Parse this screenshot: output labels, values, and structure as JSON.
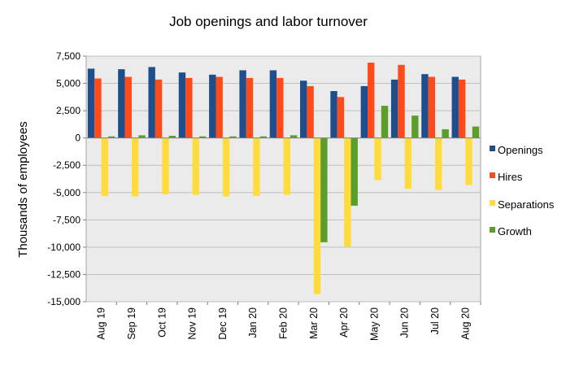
{
  "chart_data": {
    "type": "bar",
    "title": "Job openings and labor turnover",
    "xlabel": "",
    "ylabel": "Thousands  of employees",
    "ylim": [
      -15000,
      7500
    ],
    "yticks": [
      7500,
      5000,
      2500,
      0,
      -2500,
      -5000,
      -7500,
      -10000,
      -12500,
      -15000
    ],
    "ytick_labels": [
      "7,500",
      "5,000",
      "2,500",
      "0",
      "-2,500",
      "-5,000",
      "-7,500",
      "-10,000",
      "-12,500",
      "-15,000"
    ],
    "categories": [
      "Aug 19",
      "Sep 19",
      "Oct 19",
      "Nov 19",
      "Dec 19",
      "Jan 20",
      "Feb 20",
      "Mar 20",
      "Apr 20",
      "May 20",
      "Jun 20",
      "Jul 20",
      "Aug 20"
    ],
    "grid": true,
    "legend_position": "right",
    "series": [
      {
        "name": "Openings",
        "color": "#1f4e8c",
        "values": [
          6350,
          6300,
          6500,
          6000,
          5800,
          6200,
          6200,
          5250,
          4300,
          4750,
          5350,
          5850,
          5600
        ]
      },
      {
        "name": "Hires",
        "color": "#ff4b1a",
        "values": [
          5450,
          5600,
          5350,
          5500,
          5600,
          5500,
          5500,
          4750,
          3750,
          6900,
          6700,
          5600,
          5350
        ]
      },
      {
        "name": "Separations",
        "color": "#ffdb3b",
        "values": [
          -5300,
          -5350,
          -5150,
          -5200,
          -5350,
          -5300,
          -5200,
          -14300,
          -9950,
          -3850,
          -4650,
          -4750,
          -4300
        ]
      },
      {
        "name": "Growth",
        "color": "#5b9e2a",
        "values": [
          150,
          250,
          200,
          150,
          150,
          150,
          250,
          -9550,
          -6200,
          2950,
          2050,
          800,
          1050
        ]
      }
    ]
  }
}
